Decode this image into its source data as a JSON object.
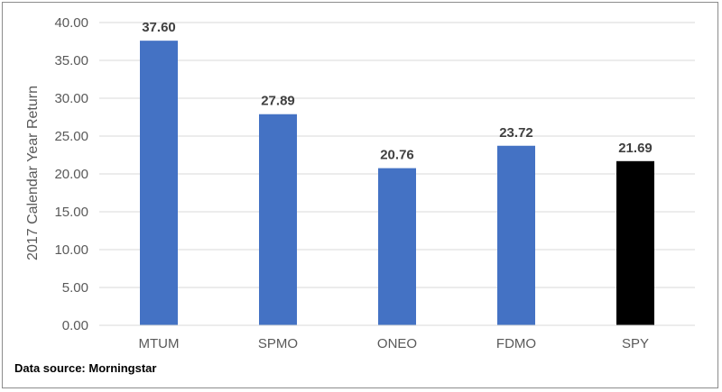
{
  "chart_data": {
    "type": "bar",
    "categories": [
      "MTUM",
      "SPMO",
      "ONEO",
      "FDMO",
      "SPY"
    ],
    "values": [
      37.6,
      27.89,
      20.76,
      23.72,
      21.69
    ],
    "value_labels": [
      "37.60",
      "27.89",
      "20.76",
      "23.72",
      "21.69"
    ],
    "bar_colors": [
      "#4472c4",
      "#4472c4",
      "#4472c4",
      "#4472c4",
      "#000000"
    ],
    "title": "",
    "xlabel": "",
    "ylabel": "2017 Calendar Year Return",
    "ylim": [
      0,
      40
    ],
    "yticks": [
      "0.00",
      "5.00",
      "10.00",
      "15.00",
      "20.00",
      "25.00",
      "30.00",
      "35.00",
      "40.00"
    ],
    "grid": true,
    "legend": "none"
  },
  "footer": {
    "source_text": "Data source: Morningstar"
  },
  "colors": {
    "gridline": "#d9d9d9",
    "axis_text": "#595959",
    "data_label": "#404040"
  }
}
